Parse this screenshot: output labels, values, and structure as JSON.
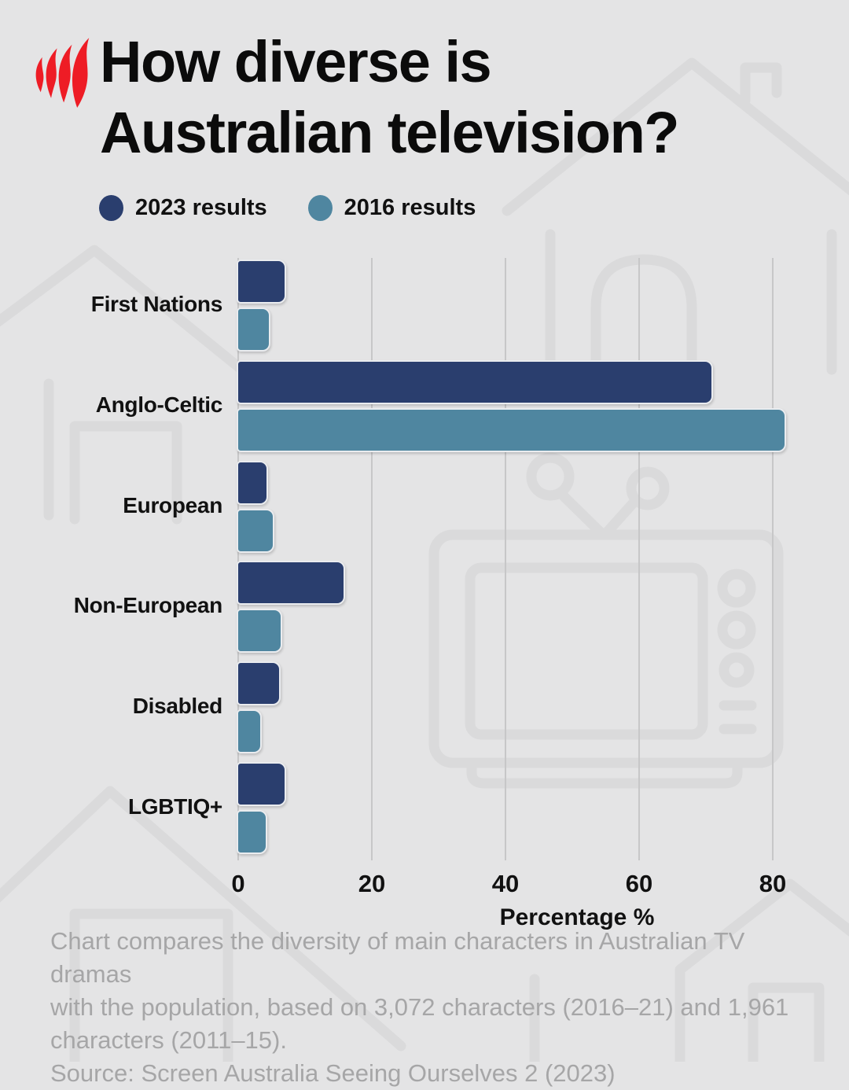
{
  "header": {
    "title_line1": "How diverse is",
    "title_line2": "Australian television?",
    "logo": "sbs-flame-logo",
    "logo_color": "#ee1c25"
  },
  "chart_data": {
    "type": "bar",
    "orientation": "horizontal",
    "title": "How diverse is Australian television?",
    "categories": [
      "First Nations",
      "Anglo-Celtic",
      "European",
      "Non-European",
      "Disabled",
      "LGBTIQ+"
    ],
    "series": [
      {
        "name": "2023 results",
        "color": "#2a3e6e",
        "values": [
          7.2,
          71,
          4.5,
          16,
          6.4,
          7.2
        ]
      },
      {
        "name": "2016 results",
        "color": "#4f86a0",
        "values": [
          4.8,
          82,
          5.4,
          6.6,
          3.5,
          4.4
        ]
      }
    ],
    "xlabel": "Percentage %",
    "x_ticks": [
      0,
      20,
      40,
      60,
      80
    ],
    "xlim": [
      0,
      88
    ],
    "grid": true,
    "legend_position": "top",
    "gridline_color": "#c7c7c8"
  },
  "footer": {
    "lines": [
      "Chart compares the diversity of main characters in Australian TV dramas",
      "with the population, based on 3,072 characters (2016–21) and 1,961",
      "characters (2011–15).",
      "Source: Screen Australia Seeing Ourselves 2 (2023)"
    ]
  }
}
